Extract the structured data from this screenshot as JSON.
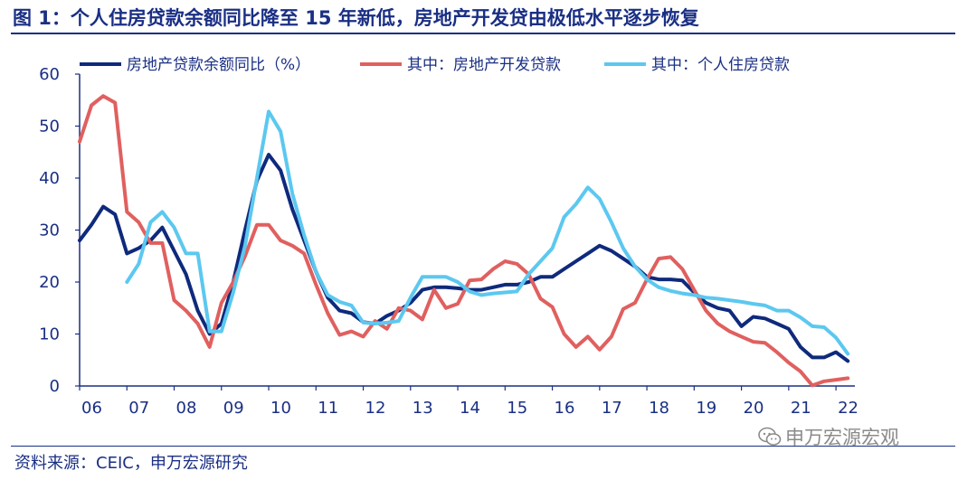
{
  "header": {
    "title": "图 1：个人住房贷款余额同比降至 15 年新低，房地产开发贷由极低水平逐步恢复"
  },
  "footer": {
    "source": "资料来源：CEIC，申万宏源研究",
    "watermark": "申万宏源宏观",
    "watermark_icon": "wechat-icon"
  },
  "chart_data": {
    "type": "line",
    "title": "",
    "xlabel": "",
    "ylabel": "",
    "ylim": [
      0,
      60
    ],
    "xlim": [
      2006,
      2022.4
    ],
    "yticks": [
      0,
      10,
      20,
      30,
      40,
      50,
      60
    ],
    "xticks": [
      {
        "label": "06",
        "x": 2006
      },
      {
        "label": "07",
        "x": 2007
      },
      {
        "label": "08",
        "x": 2008
      },
      {
        "label": "09",
        "x": 2009
      },
      {
        "label": "10",
        "x": 2010
      },
      {
        "label": "11",
        "x": 2011
      },
      {
        "label": "12",
        "x": 2012
      },
      {
        "label": "13",
        "x": 2013
      },
      {
        "label": "14",
        "x": 2014
      },
      {
        "label": "15",
        "x": 2015
      },
      {
        "label": "16",
        "x": 2016
      },
      {
        "label": "17",
        "x": 2017
      },
      {
        "label": "18",
        "x": 2018
      },
      {
        "label": "19",
        "x": 2019
      },
      {
        "label": "20",
        "x": 2020
      },
      {
        "label": "21",
        "x": 2021
      },
      {
        "label": "22",
        "x": 2022
      }
    ],
    "grid": false,
    "legend_position": "top",
    "series": [
      {
        "name": "房地产贷款余额同比（%）",
        "color": "#0f2a7c",
        "points": [
          [
            2006.0,
            28
          ],
          [
            2006.25,
            31
          ],
          [
            2006.5,
            34.5
          ],
          [
            2006.75,
            33
          ],
          [
            2007.0,
            25.5
          ],
          [
            2007.25,
            26.5
          ],
          [
            2007.5,
            28
          ],
          [
            2007.75,
            30.5
          ],
          [
            2008.0,
            26
          ],
          [
            2008.25,
            21.5
          ],
          [
            2008.5,
            14.5
          ],
          [
            2008.75,
            10
          ],
          [
            2009.0,
            12
          ],
          [
            2009.25,
            20
          ],
          [
            2009.5,
            30
          ],
          [
            2009.75,
            39.5
          ],
          [
            2010.0,
            44.5
          ],
          [
            2010.25,
            41.5
          ],
          [
            2010.5,
            34
          ],
          [
            2010.75,
            28
          ],
          [
            2011.0,
            22
          ],
          [
            2011.25,
            17
          ],
          [
            2011.5,
            14.5
          ],
          [
            2011.75,
            14
          ],
          [
            2012.0,
            12.3
          ],
          [
            2012.25,
            12
          ],
          [
            2012.5,
            13.5
          ],
          [
            2012.75,
            14.5
          ],
          [
            2013.0,
            16
          ],
          [
            2013.25,
            18.5
          ],
          [
            2013.5,
            19
          ],
          [
            2013.75,
            19
          ],
          [
            2014.0,
            18.8
          ],
          [
            2014.25,
            18.5
          ],
          [
            2014.5,
            18.5
          ],
          [
            2014.75,
            19
          ],
          [
            2015.0,
            19.5
          ],
          [
            2015.25,
            19.5
          ],
          [
            2015.5,
            20
          ],
          [
            2015.75,
            21
          ],
          [
            2016.0,
            21
          ],
          [
            2016.25,
            22.5
          ],
          [
            2016.5,
            24
          ],
          [
            2016.75,
            25.5
          ],
          [
            2017.0,
            27
          ],
          [
            2017.25,
            26
          ],
          [
            2017.5,
            24.5
          ],
          [
            2017.75,
            23
          ],
          [
            2018.0,
            21
          ],
          [
            2018.25,
            20.5
          ],
          [
            2018.5,
            20.5
          ],
          [
            2018.75,
            20.3
          ],
          [
            2019.0,
            18
          ],
          [
            2019.25,
            16
          ],
          [
            2019.5,
            15
          ],
          [
            2019.75,
            14.5
          ],
          [
            2020.0,
            11.5
          ],
          [
            2020.25,
            13.3
          ],
          [
            2020.5,
            13
          ],
          [
            2020.75,
            12
          ],
          [
            2021.0,
            11
          ],
          [
            2021.25,
            7.5
          ],
          [
            2021.5,
            5.5
          ],
          [
            2021.75,
            5.5
          ],
          [
            2022.0,
            6.5
          ],
          [
            2022.25,
            4.8
          ]
        ]
      },
      {
        "name": "其中：房地产开发贷款",
        "color": "#e0605f",
        "points": [
          [
            2006.0,
            47
          ],
          [
            2006.25,
            54
          ],
          [
            2006.5,
            55.8
          ],
          [
            2006.75,
            54.5
          ],
          [
            2007.0,
            33.5
          ],
          [
            2007.25,
            31.5
          ],
          [
            2007.5,
            27.5
          ],
          [
            2007.75,
            27.5
          ],
          [
            2008.0,
            16.5
          ],
          [
            2008.25,
            14.5
          ],
          [
            2008.5,
            12
          ],
          [
            2008.75,
            7.5
          ],
          [
            2009.0,
            16
          ],
          [
            2009.25,
            20
          ],
          [
            2009.5,
            25
          ],
          [
            2009.75,
            31
          ],
          [
            2010.0,
            31
          ],
          [
            2010.25,
            28
          ],
          [
            2010.5,
            27
          ],
          [
            2010.75,
            25.5
          ],
          [
            2011.0,
            19.5
          ],
          [
            2011.25,
            14
          ],
          [
            2011.5,
            9.8
          ],
          [
            2011.75,
            10.5
          ],
          [
            2012.0,
            9.5
          ],
          [
            2012.25,
            12.5
          ],
          [
            2012.5,
            11
          ],
          [
            2012.75,
            15
          ],
          [
            2013.0,
            14.5
          ],
          [
            2013.25,
            12.8
          ],
          [
            2013.5,
            18.5
          ],
          [
            2013.75,
            15
          ],
          [
            2014.0,
            15.8
          ],
          [
            2014.25,
            20.3
          ],
          [
            2014.5,
            20.5
          ],
          [
            2014.75,
            22.5
          ],
          [
            2015.0,
            24
          ],
          [
            2015.25,
            23.5
          ],
          [
            2015.5,
            21.5
          ],
          [
            2015.75,
            16.8
          ],
          [
            2016.0,
            15.2
          ],
          [
            2016.25,
            10
          ],
          [
            2016.5,
            7.5
          ],
          [
            2016.75,
            9.5
          ],
          [
            2017.0,
            7
          ],
          [
            2017.25,
            9.5
          ],
          [
            2017.5,
            14.8
          ],
          [
            2017.75,
            16
          ],
          [
            2018.0,
            20.5
          ],
          [
            2018.25,
            24.5
          ],
          [
            2018.5,
            24.8
          ],
          [
            2018.75,
            22.5
          ],
          [
            2019.0,
            18.5
          ],
          [
            2019.25,
            14.5
          ],
          [
            2019.5,
            12
          ],
          [
            2019.75,
            10.5
          ],
          [
            2020.0,
            9.5
          ],
          [
            2020.25,
            8.5
          ],
          [
            2020.5,
            8.3
          ],
          [
            2020.75,
            6.5
          ],
          [
            2021.0,
            4.5
          ],
          [
            2021.25,
            2.8
          ],
          [
            2021.5,
            0.1
          ],
          [
            2021.75,
            0.9
          ],
          [
            2022.0,
            1.2
          ],
          [
            2022.25,
            1.5
          ]
        ]
      },
      {
        "name": "其中：个人住房贷款",
        "color": "#5cc8f0",
        "points": [
          [
            2007.0,
            20
          ],
          [
            2007.25,
            23.5
          ],
          [
            2007.5,
            31.5
          ],
          [
            2007.75,
            33.5
          ],
          [
            2008.0,
            30.5
          ],
          [
            2008.25,
            25.5
          ],
          [
            2008.5,
            25.5
          ],
          [
            2008.75,
            10.5
          ],
          [
            2009.0,
            10.5
          ],
          [
            2009.25,
            18
          ],
          [
            2009.5,
            27
          ],
          [
            2009.75,
            40
          ],
          [
            2010.0,
            52.8
          ],
          [
            2010.25,
            49
          ],
          [
            2010.5,
            37
          ],
          [
            2010.75,
            29
          ],
          [
            2011.0,
            22
          ],
          [
            2011.25,
            17.5
          ],
          [
            2011.5,
            16.2
          ],
          [
            2011.75,
            15.5
          ],
          [
            2012.0,
            12.2
          ],
          [
            2012.25,
            12
          ],
          [
            2012.5,
            12.2
          ],
          [
            2012.75,
            12.5
          ],
          [
            2013.0,
            17
          ],
          [
            2013.25,
            21
          ],
          [
            2013.5,
            21
          ],
          [
            2013.75,
            21
          ],
          [
            2014.0,
            20
          ],
          [
            2014.25,
            18.2
          ],
          [
            2014.5,
            17.5
          ],
          [
            2014.75,
            17.8
          ],
          [
            2015.0,
            18
          ],
          [
            2015.25,
            18.2
          ],
          [
            2015.5,
            21.5
          ],
          [
            2015.75,
            24
          ],
          [
            2016.0,
            26.5
          ],
          [
            2016.25,
            32.5
          ],
          [
            2016.5,
            35
          ],
          [
            2016.75,
            38.2
          ],
          [
            2017.0,
            36
          ],
          [
            2017.25,
            31.5
          ],
          [
            2017.5,
            26.5
          ],
          [
            2017.75,
            23
          ],
          [
            2018.0,
            20.5
          ],
          [
            2018.25,
            19
          ],
          [
            2018.5,
            18.3
          ],
          [
            2018.75,
            17.8
          ],
          [
            2019.0,
            17.5
          ],
          [
            2019.25,
            17
          ],
          [
            2019.5,
            16.8
          ],
          [
            2019.75,
            16.5
          ],
          [
            2020.0,
            16.2
          ],
          [
            2020.25,
            15.8
          ],
          [
            2020.5,
            15.5
          ],
          [
            2020.75,
            14.5
          ],
          [
            2021.0,
            14.5
          ],
          [
            2021.25,
            13.2
          ],
          [
            2021.5,
            11.5
          ],
          [
            2021.75,
            11.3
          ],
          [
            2022.0,
            9.3
          ],
          [
            2022.25,
            6.2
          ]
        ]
      }
    ]
  }
}
